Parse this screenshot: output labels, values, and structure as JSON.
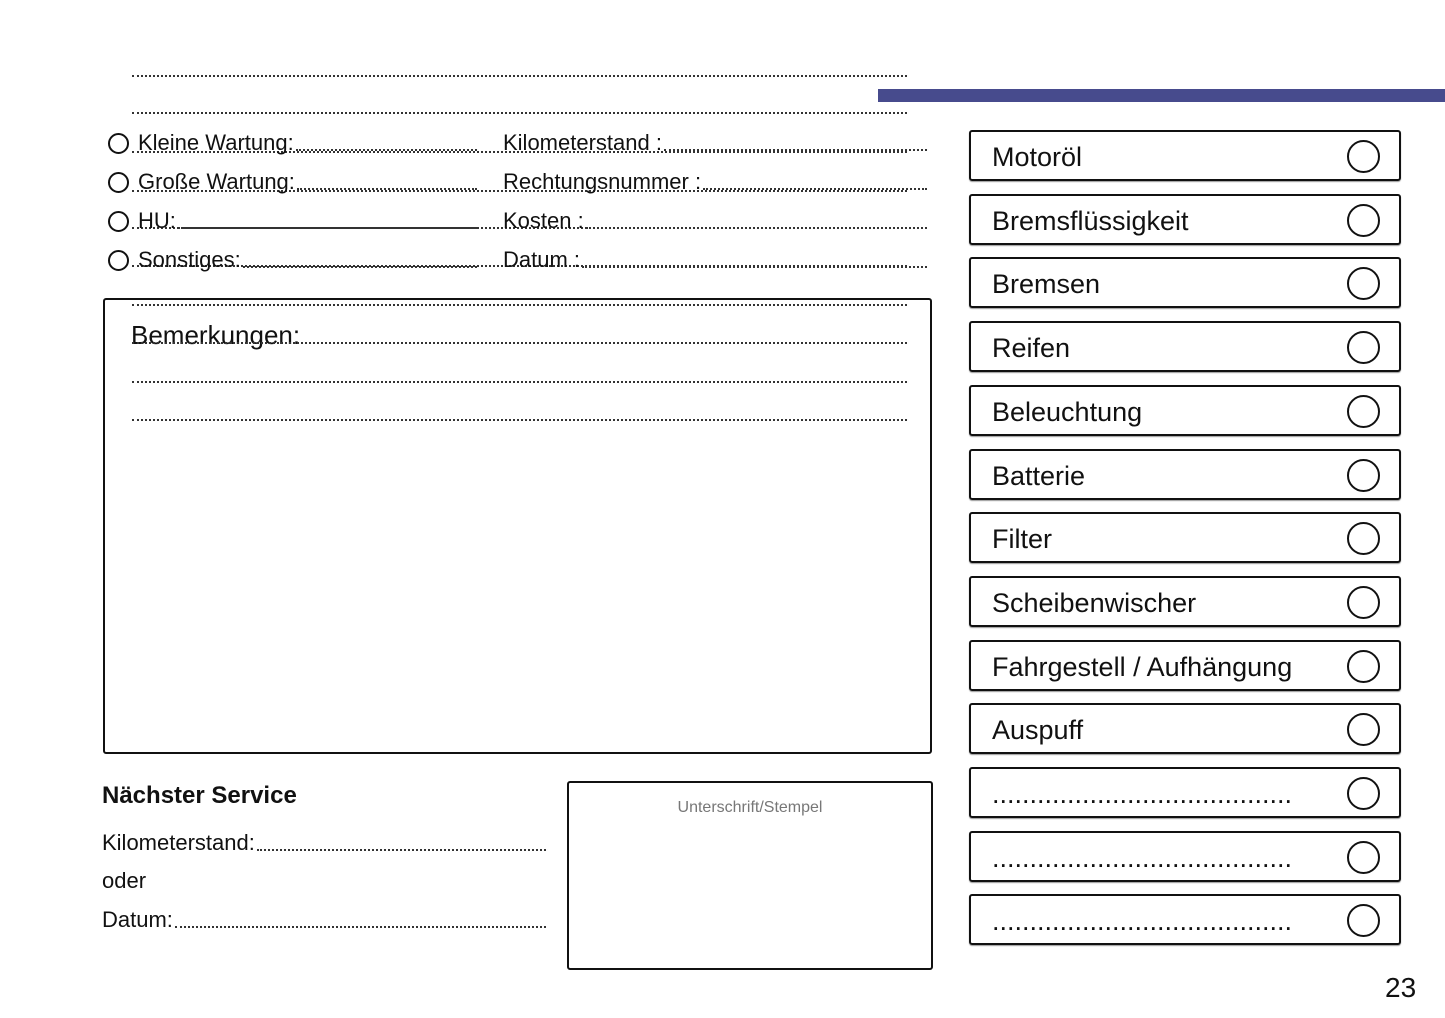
{
  "service_types": [
    {
      "label": "Kleine Wartung:"
    },
    {
      "label": "Große Wartung:"
    },
    {
      "label": "HU:"
    },
    {
      "label": "Sonstiges:"
    }
  ],
  "details": [
    {
      "label": "Kilometerstand :"
    },
    {
      "label": "Rechtungsnummer :"
    },
    {
      "label": "Kosten :"
    },
    {
      "label": "Datum :"
    }
  ],
  "remarks": {
    "title": "Bemerkungen:"
  },
  "next_service": {
    "title": "Nächster Service",
    "km_label": "Kilometerstand:",
    "or_label": "oder",
    "date_label": "Datum:"
  },
  "signature": {
    "label": "Unterschrift/Stempel"
  },
  "checklist": [
    {
      "label": "Motoröl"
    },
    {
      "label": "Bremsflüssigkeit"
    },
    {
      "label": "Bremsen"
    },
    {
      "label": "Reifen"
    },
    {
      "label": "Beleuchtung"
    },
    {
      "label": "Batterie"
    },
    {
      "label": "Filter"
    },
    {
      "label": "Scheibenwischer"
    },
    {
      "label": "Fahrgestell / Aufhängung"
    },
    {
      "label": "Auspuff"
    },
    {
      "label": "........................................"
    },
    {
      "label": "........................................"
    },
    {
      "label": "........................................"
    }
  ],
  "page_number": "23",
  "colors": {
    "accent_bar": "#474b8d"
  }
}
